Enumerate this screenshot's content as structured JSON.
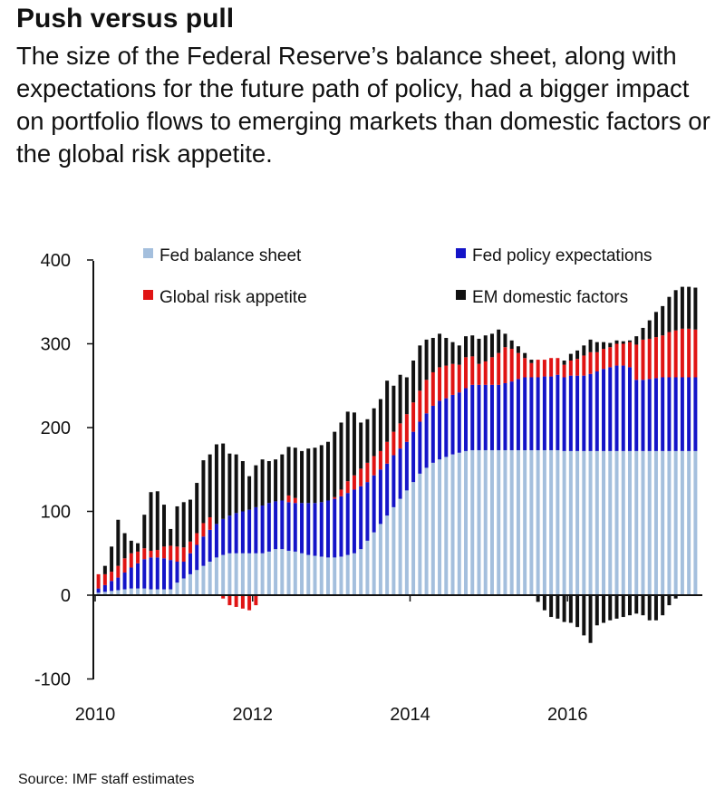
{
  "title": "Push versus pull",
  "subtitle": "The size of the Federal Reserve’s balance sheet, along with expectations for the future path of policy, had a bigger impact on portfolio flows to emerging markets than domestic factors or the global risk appetite.",
  "source": "Source: IMF staff estimates",
  "chart_data": {
    "type": "bar",
    "stacked": true,
    "frequency": "monthly",
    "x_start": "2010-01",
    "x_end": "2017-08",
    "xticks": [
      "2010",
      "2012",
      "2014",
      "2016"
    ],
    "yticks": [
      "400",
      "300",
      "200",
      "100",
      "0",
      "-100"
    ],
    "ylim": [
      -100,
      400
    ],
    "grid": false,
    "legend_position": "top",
    "colors": {
      "Fed balance sheet": "#a4bfdd",
      "Fed policy expectations": "#1414c8",
      "Global risk appetite": "#e01414",
      "EM domestic factors": "#111111"
    },
    "series": [
      {
        "name": "Fed balance sheet",
        "values": [
          3,
          4,
          5,
          6,
          7,
          8,
          8,
          8,
          7,
          7,
          7,
          7,
          15,
          20,
          25,
          30,
          35,
          40,
          45,
          48,
          50,
          50,
          50,
          50,
          50,
          50,
          52,
          55,
          55,
          53,
          52,
          50,
          48,
          47,
          46,
          45,
          45,
          46,
          48,
          50,
          55,
          65,
          75,
          85,
          95,
          105,
          115,
          125,
          135,
          145,
          152,
          158,
          162,
          165,
          168,
          170,
          172,
          173,
          173,
          173,
          173,
          173,
          173,
          173,
          173,
          173,
          173,
          173,
          173,
          173,
          173,
          172,
          172,
          172,
          172,
          172,
          172,
          172,
          172,
          172,
          172,
          172,
          172,
          172,
          172,
          172,
          172,
          172,
          172,
          172,
          172,
          172
        ]
      },
      {
        "name": "Fed policy expectations",
        "values": [
          5,
          8,
          12,
          15,
          20,
          25,
          30,
          35,
          38,
          38,
          37,
          35,
          25,
          20,
          25,
          30,
          35,
          38,
          40,
          43,
          45,
          48,
          50,
          52,
          55,
          57,
          58,
          57,
          58,
          58,
          58,
          60,
          62,
          63,
          65,
          68,
          70,
          72,
          74,
          76,
          75,
          70,
          68,
          65,
          62,
          62,
          60,
          58,
          60,
          62,
          65,
          68,
          70,
          70,
          71,
          72,
          75,
          78,
          78,
          78,
          78,
          78,
          80,
          82,
          85,
          87,
          87,
          87,
          88,
          88,
          90,
          88,
          90,
          90,
          90,
          92,
          95,
          98,
          100,
          102,
          102,
          100,
          85,
          85,
          86,
          87,
          88,
          88,
          88,
          88,
          88,
          88
        ]
      },
      {
        "name": "Global risk appetite",
        "values": [
          17,
          13,
          11,
          14,
          17,
          17,
          14,
          13,
          8,
          9,
          14,
          17,
          18,
          17,
          14,
          14,
          16,
          15,
          0,
          0,
          0,
          0,
          0,
          0,
          0,
          0,
          0,
          0,
          0,
          8,
          6,
          0,
          0,
          0,
          0,
          0,
          2,
          8,
          14,
          17,
          21,
          23,
          23,
          22,
          26,
          28,
          30,
          33,
          35,
          37,
          40,
          40,
          40,
          39,
          37,
          33,
          37,
          34,
          25,
          28,
          33,
          38,
          43,
          39,
          31,
          23,
          17,
          21,
          20,
          22,
          20,
          15,
          18,
          20,
          24,
          26,
          23,
          24,
          24,
          26,
          26,
          30,
          42,
          48,
          48,
          49,
          50,
          54,
          56,
          58,
          58,
          57
        ]
      },
      {
        "name": "EM domestic factors",
        "values": [
          0,
          10,
          30,
          55,
          30,
          15,
          10,
          40,
          70,
          70,
          50,
          20,
          48,
          54,
          50,
          60,
          75,
          75,
          95,
          90,
          74,
          70,
          60,
          40,
          50,
          55,
          50,
          50,
          55,
          58,
          60,
          62,
          65,
          66,
          68,
          70,
          78,
          80,
          83,
          75,
          55,
          52,
          57,
          62,
          73,
          55,
          58,
          44,
          50,
          54,
          48,
          41,
          40,
          33,
          26,
          23,
          25,
          25,
          30,
          31,
          28,
          28,
          16,
          10,
          8,
          6,
          4,
          0,
          0,
          0,
          0,
          5,
          8,
          10,
          12,
          15,
          12,
          8,
          5,
          4,
          3,
          2,
          10,
          14,
          22,
          30,
          35,
          42,
          48,
          50,
          50,
          50
        ]
      },
      {
        "name": "Global risk appetite (negative)",
        "values": [
          0,
          0,
          0,
          0,
          0,
          0,
          0,
          0,
          0,
          0,
          0,
          0,
          0,
          0,
          0,
          0,
          0,
          0,
          0,
          -4,
          -12,
          -14,
          -16,
          -18,
          -12,
          0,
          0,
          0,
          0,
          0,
          0,
          0,
          0,
          0,
          0,
          0,
          0,
          0,
          0,
          0,
          0,
          0,
          0,
          0,
          0,
          0,
          0,
          0,
          0,
          0,
          0,
          0,
          0,
          0,
          0,
          0,
          0,
          0,
          0,
          0,
          0,
          0,
          0,
          0,
          0,
          0,
          0,
          0,
          0,
          0,
          0,
          0,
          0,
          0,
          0,
          0,
          0,
          0,
          0,
          0,
          0,
          0,
          0,
          0,
          0,
          0,
          0,
          0,
          0,
          0,
          0,
          0
        ]
      },
      {
        "name": "EM domestic factors (negative)",
        "values": [
          0,
          0,
          0,
          0,
          0,
          0,
          0,
          0,
          0,
          0,
          0,
          0,
          0,
          0,
          0,
          0,
          0,
          0,
          0,
          0,
          0,
          0,
          0,
          0,
          0,
          0,
          0,
          0,
          0,
          0,
          0,
          0,
          0,
          0,
          0,
          0,
          0,
          0,
          0,
          0,
          0,
          0,
          0,
          0,
          0,
          0,
          0,
          0,
          0,
          0,
          0,
          0,
          0,
          0,
          0,
          0,
          0,
          0,
          0,
          0,
          0,
          0,
          0,
          0,
          0,
          0,
          0,
          -8,
          -18,
          -26,
          -28,
          -32,
          -33,
          -38,
          -48,
          -57,
          -36,
          -33,
          -30,
          -28,
          -26,
          -24,
          -22,
          -24,
          -30,
          -30,
          -24,
          -12,
          -4,
          0,
          0,
          0
        ]
      }
    ]
  }
}
